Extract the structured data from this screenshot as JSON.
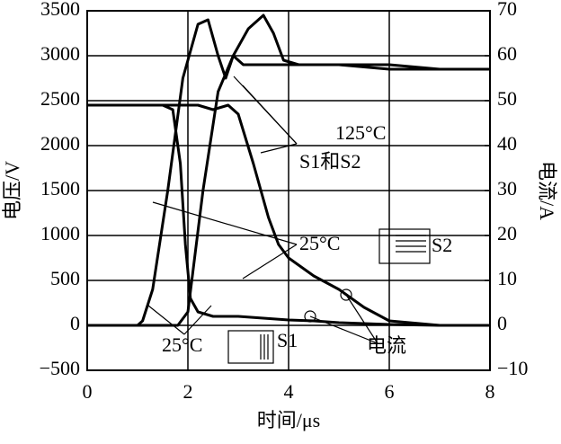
{
  "chart_data": {
    "type": "line",
    "xlabel": "时间/μs",
    "ylabel": "电压/V",
    "y2label": "电流/A",
    "xlim": [
      0,
      8
    ],
    "xticks": [
      0,
      2,
      4,
      6,
      8
    ],
    "ylim": [
      -500,
      3500
    ],
    "yticks": [
      {
        "value": -500,
        "label": "−500"
      },
      0,
      500,
      1000,
      1500,
      2000,
      2500,
      3000,
      3500
    ],
    "y2lim": [
      -10,
      70
    ],
    "y2ticks": [
      {
        "value": -10,
        "label": "−10"
      },
      0,
      10,
      20,
      30,
      40,
      50,
      60,
      70
    ],
    "grid": true,
    "series": [
      {
        "color": "#000000",
        "x": [
          0,
          1.0,
          1.5,
          1.7,
          1.85,
          1.95,
          2.05,
          2.2,
          2.5,
          3,
          3.5,
          4,
          4.5,
          5,
          5.5,
          6,
          7,
          8
        ],
        "values": [
          2450,
          2450,
          2450,
          2400,
          1800,
          900,
          300,
          150,
          100,
          100,
          80,
          60,
          50,
          30,
          20,
          10,
          0,
          0
        ]
      },
      {
        "color": "#000000",
        "x": [
          0,
          1,
          1.3,
          1.8,
          2.2,
          2.5,
          2.8,
          3,
          3.3,
          3.6,
          3.8,
          4,
          4.5,
          5,
          5.5,
          6,
          7,
          8
        ],
        "values": [
          2450,
          2450,
          2450,
          2450,
          2450,
          2400,
          2450,
          2350,
          1800,
          1200,
          900,
          750,
          550,
          400,
          200,
          50,
          0,
          0
        ]
      },
      {
        "color": "#000000",
        "axis": "y2",
        "x": [
          0,
          1,
          1.1,
          1.3,
          1.6,
          1.9,
          2.2,
          2.4,
          2.6,
          2.75,
          2.9,
          3.1,
          3.5,
          4,
          5,
          6,
          7,
          8
        ],
        "values": [
          0,
          0,
          1,
          8,
          30,
          55,
          67,
          68,
          60,
          55,
          60,
          58,
          58,
          58,
          58,
          57,
          57,
          57
        ]
      },
      {
        "color": "#000000",
        "axis": "y2",
        "x": [
          0,
          1.8,
          2.0,
          2.3,
          2.6,
          2.9,
          3.2,
          3.5,
          3.7,
          3.9,
          4.2,
          5,
          6,
          7,
          8
        ],
        "values": [
          0,
          0,
          3,
          30,
          52,
          60,
          66,
          69,
          65,
          59,
          58,
          58,
          58,
          57,
          57
        ]
      }
    ],
    "annotations": [
      "125°C",
      "S1和S2",
      "25°C",
      "25°C",
      "电流",
      "S1",
      "S2"
    ]
  }
}
